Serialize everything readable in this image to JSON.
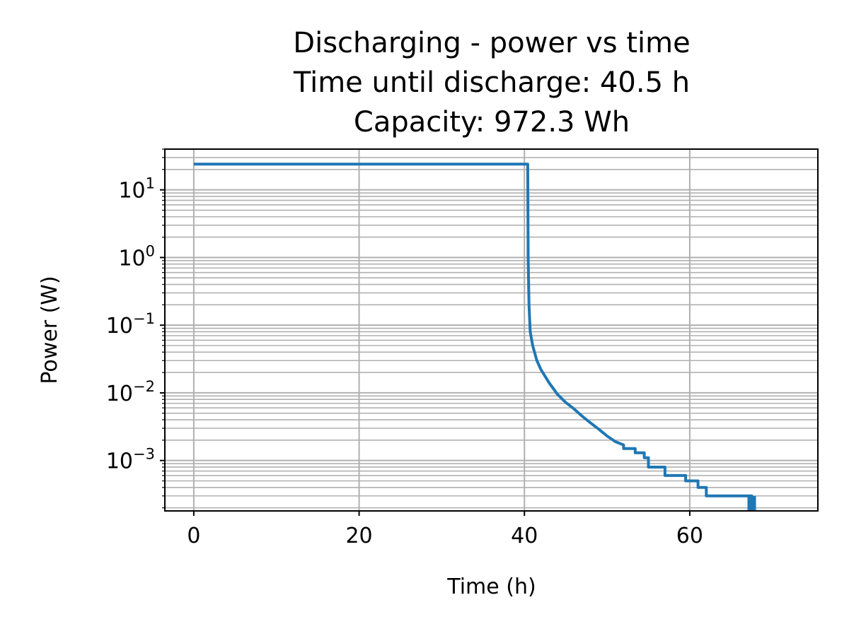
{
  "chart_data": {
    "type": "line",
    "title": [
      "Discharging - power vs time",
      "Time until discharge: 40.5 h",
      "Capacity: 972.3 Wh"
    ],
    "xlabel": "Time (h)",
    "ylabel": "Power (W)",
    "xlim": [
      -3.5,
      75.5
    ],
    "ylim": [
      0.00018,
      40
    ],
    "yscale": "log",
    "grid": true,
    "x_ticks": [
      0,
      20,
      40,
      60
    ],
    "x_tick_labels": [
      "0",
      "20",
      "40",
      "60"
    ],
    "y_ticks": [
      10,
      1,
      0.1,
      0.01,
      0.001
    ],
    "y_tick_labels": [
      {
        "base": "10",
        "exp": "1"
      },
      {
        "base": "10",
        "exp": "0"
      },
      {
        "base": "10",
        "exp": "−1"
      },
      {
        "base": "10",
        "exp": "−2"
      },
      {
        "base": "10",
        "exp": "−3"
      }
    ],
    "series": [
      {
        "color": "#1f77b4",
        "points": [
          [
            0,
            24
          ],
          [
            40.4,
            24
          ],
          [
            40.45,
            1.0
          ],
          [
            40.55,
            0.2
          ],
          [
            40.7,
            0.08
          ],
          [
            41.0,
            0.05
          ],
          [
            41.5,
            0.03
          ],
          [
            42.0,
            0.022
          ],
          [
            43.0,
            0.014
          ],
          [
            44.0,
            0.0095
          ],
          [
            45.0,
            0.0072
          ],
          [
            46.0,
            0.0058
          ],
          [
            47.0,
            0.0045
          ],
          [
            48.0,
            0.0036
          ],
          [
            49.0,
            0.0029
          ],
          [
            50.0,
            0.0023
          ],
          [
            51.0,
            0.0019
          ],
          [
            52.0,
            0.0017
          ],
          [
            52.0,
            0.0015
          ],
          [
            53.4,
            0.0015
          ],
          [
            53.4,
            0.0013
          ],
          [
            54.5,
            0.0013
          ],
          [
            54.5,
            0.0011
          ],
          [
            55.0,
            0.0011
          ],
          [
            55.0,
            0.0008
          ],
          [
            57.0,
            0.0008
          ],
          [
            57.0,
            0.0006
          ],
          [
            59.5,
            0.0006
          ],
          [
            59.5,
            0.0005
          ],
          [
            61.0,
            0.0005
          ],
          [
            61.0,
            0.0004
          ],
          [
            62.0,
            0.0004
          ],
          [
            62.0,
            0.0003
          ],
          [
            67.5,
            0.0003
          ],
          [
            67.5,
            0.00018
          ]
        ]
      }
    ]
  }
}
